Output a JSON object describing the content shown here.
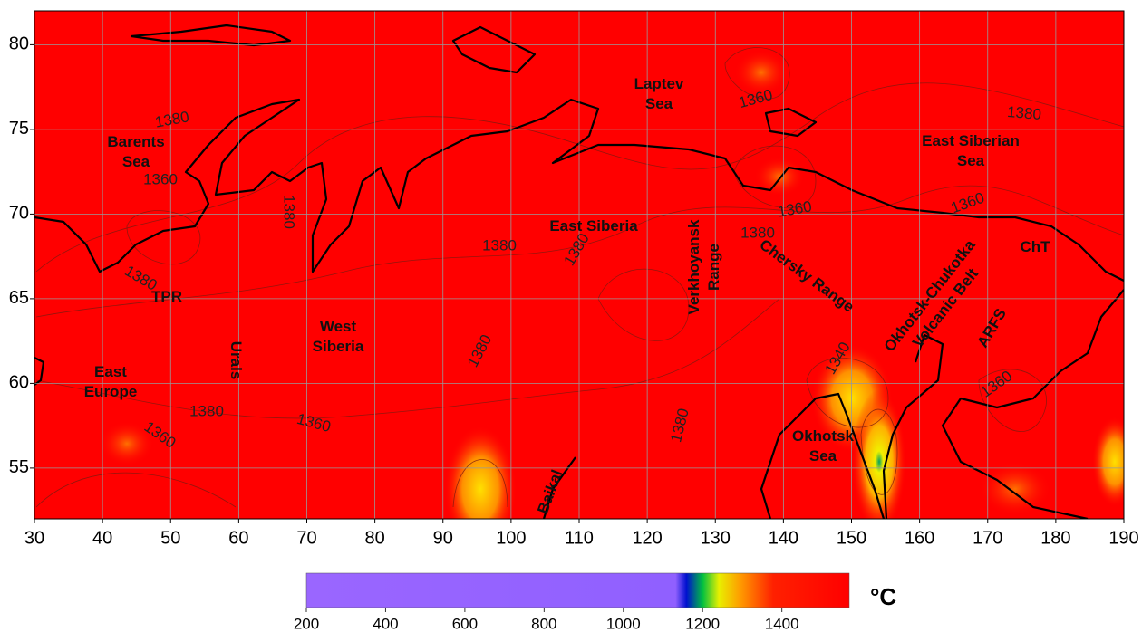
{
  "map": {
    "xlim": [
      30,
      190
    ],
    "ylim": [
      52,
      82
    ],
    "xticks": [
      30,
      40,
      50,
      60,
      70,
      80,
      90,
      100,
      110,
      120,
      130,
      140,
      150,
      160,
      170,
      180,
      190
    ],
    "yticks": [
      55,
      60,
      65,
      70,
      75,
      80
    ],
    "grid": true,
    "regions": [
      [
        "Barents",
        "Sea"
      ],
      [
        "Laptev",
        "Sea"
      ],
      [
        "East Siberian",
        "Sea"
      ],
      [
        "East Siberia"
      ],
      [
        "Verkhoyansk",
        "Range"
      ],
      [
        "Chersky Range"
      ],
      [
        "Okhotsk-Chukotka",
        "Volcanic Belt"
      ],
      [
        "ARFS"
      ],
      [
        "ChT"
      ],
      [
        "TPR"
      ],
      [
        "West",
        "Siberia"
      ],
      [
        "Urals"
      ],
      [
        "East",
        "Europe"
      ],
      [
        "Okhotsk",
        "Sea"
      ],
      [
        "Baikal"
      ]
    ],
    "contour_labels": [
      1380,
      1360,
      1380,
      1380,
      1380,
      1380,
      1360,
      1380,
      1360,
      1360,
      1380,
      1340,
      1380,
      1380,
      1360,
      1360,
      1380,
      1360
    ]
  },
  "colorbar": {
    "clim": [
      200,
      1570
    ],
    "ticks": [
      200,
      400,
      600,
      800,
      1000,
      1200,
      1400
    ],
    "unit": "°C"
  }
}
